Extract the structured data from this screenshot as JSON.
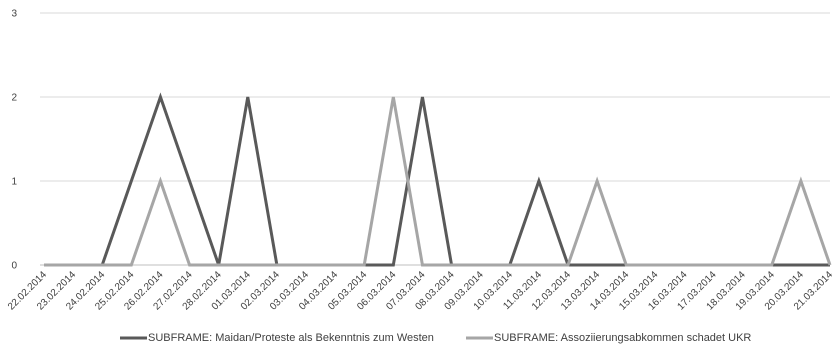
{
  "chart_data": {
    "type": "line",
    "x": [
      "22.02.2014",
      "23.02.2014",
      "24.02.2014",
      "25.02.2014",
      "26.02.2014",
      "27.02.2014",
      "28.02.2014",
      "01.03.2014",
      "02.03.2014",
      "03.03.2014",
      "04.03.2014",
      "05.03.2014",
      "06.03.2014",
      "07.03.2014",
      "08.03.2014",
      "09.03.2014",
      "10.03.2014",
      "11.03.2014",
      "12.03.2014",
      "13.03.2014",
      "14.03.2014",
      "15.03.2014",
      "16.03.2014",
      "17.03.2014",
      "18.03.2014",
      "19.03.2014",
      "20.03.2014",
      "21.03.2014"
    ],
    "yticks": [
      "0",
      "1",
      "2",
      "3"
    ],
    "ylim": [
      0,
      3
    ],
    "grid": "horizontal",
    "legend_position": "bottom",
    "series": [
      {
        "name": "SUBFRAME: Maidan/Proteste als Bekenntnis zum Westen",
        "color": "#595959",
        "values": [
          0,
          0,
          0,
          1,
          2,
          1,
          0,
          2,
          0,
          0,
          0,
          0,
          0,
          2,
          0,
          0,
          0,
          1,
          0,
          0,
          0,
          0,
          0,
          0,
          0,
          0,
          0,
          0
        ]
      },
      {
        "name": "SUBFRAME: Assoziierungsabkommen schadet UKR",
        "color": "#a6a6a6",
        "values": [
          0,
          0,
          0,
          0,
          1,
          0,
          0,
          0,
          0,
          0,
          0,
          0,
          2,
          0,
          0,
          0,
          0,
          0,
          0,
          1,
          0,
          0,
          0,
          0,
          0,
          0,
          1,
          0
        ]
      }
    ]
  }
}
